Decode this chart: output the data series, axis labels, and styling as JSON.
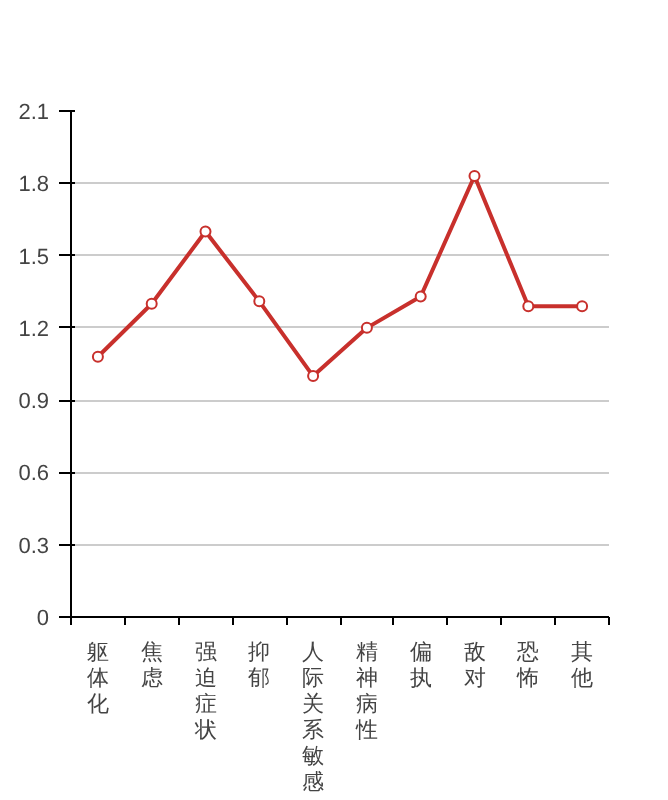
{
  "chart_data": {
    "type": "line",
    "categories": [
      "躯体化",
      "焦虑",
      "强迫症状",
      "抑郁",
      "人际关系敏感",
      "精神病性",
      "偏执",
      "敌对",
      "恐怖",
      "其他"
    ],
    "series": [
      {
        "color": "#c8302c",
        "values": [
          1.08,
          1.3,
          1.6,
          1.31,
          1.0,
          1.2,
          1.33,
          1.83,
          1.29,
          1.29
        ]
      }
    ],
    "ylim": [
      0,
      2.1
    ],
    "yticks": [
      0,
      0.3,
      0.6,
      0.9,
      1.2,
      1.5,
      1.8,
      2.1
    ],
    "grid": "y",
    "marker": "circle",
    "line_style": "solid"
  }
}
